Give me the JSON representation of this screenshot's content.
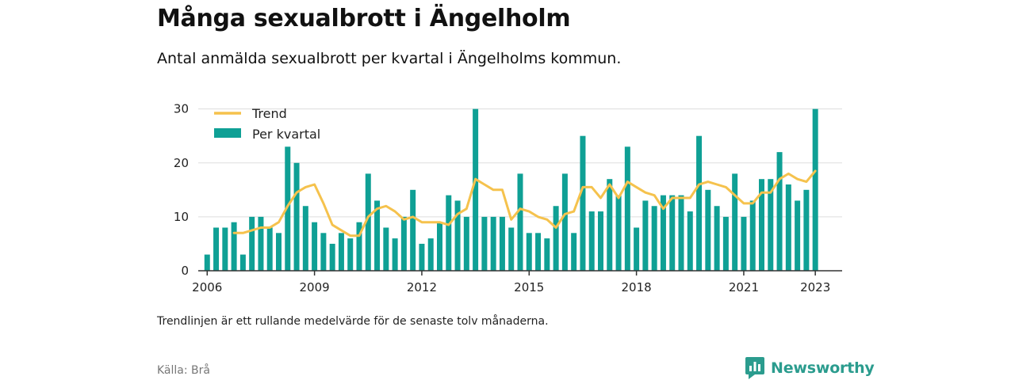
{
  "header": {
    "title": "Många sexualbrott i Ängelholm",
    "subtitle": "Antal anmälda sexualbrott per kvartal i Ängelholms kommun."
  },
  "footer": {
    "note": "Trendlinjen är ett rullande medelvärde för de senaste tolv månaderna.",
    "source": "Källa: Brå",
    "brand": "Newsworthy",
    "brand_icon": "bar-chart-speech-icon"
  },
  "colors": {
    "bars": "#0fa095",
    "trend": "#f5c24d",
    "grid": "#dddddd",
    "axis": "#333333",
    "brand": "#2b9c8e"
  },
  "chart_data": {
    "type": "bar",
    "x_unit": "quarter",
    "xlim": [
      "2005-10-01",
      "2023-10-01"
    ],
    "ylim": [
      0,
      32
    ],
    "yticks": [
      0,
      10,
      20,
      30
    ],
    "xticks": [
      {
        "label": "2006",
        "x": "2006-01-01"
      },
      {
        "label": "2009",
        "x": "2009-01-01"
      },
      {
        "label": "2012",
        "x": "2012-01-01"
      },
      {
        "label": "2015",
        "x": "2015-01-01"
      },
      {
        "label": "2018",
        "x": "2018-01-01"
      },
      {
        "label": "2021",
        "x": "2021-01-01"
      },
      {
        "label": "2023",
        "x": "2023-01-01"
      }
    ],
    "grid": true,
    "legend_position": "top-left",
    "series": [
      {
        "name": "Per kvartal",
        "type": "bar",
        "start": "2006-01-01",
        "values": [
          3,
          8,
          8,
          9,
          3,
          10,
          10,
          8,
          7,
          23,
          20,
          12,
          9,
          7,
          5,
          7,
          6,
          9,
          18,
          13,
          8,
          6,
          10,
          15,
          5,
          6,
          9,
          14,
          13,
          10,
          30,
          10,
          10,
          10,
          8,
          18,
          7,
          7,
          6,
          12,
          18,
          7,
          25,
          11,
          11,
          17,
          14,
          23,
          8,
          13,
          12,
          14,
          14,
          14,
          11,
          25,
          15,
          12,
          10,
          18,
          10,
          13,
          17,
          17,
          22,
          16,
          13,
          15,
          30
        ]
      },
      {
        "name": "Trend",
        "type": "line",
        "start": "2006-10-01",
        "values": [
          7,
          7,
          7.5,
          8,
          8,
          9,
          12,
          14.5,
          15.5,
          16,
          12.5,
          8.5,
          7.5,
          6.5,
          6.5,
          10,
          11.5,
          12,
          11,
          9.5,
          10,
          9,
          9,
          9,
          8.5,
          10.5,
          11.5,
          17,
          16,
          15,
          15,
          9.5,
          11.5,
          11,
          10,
          9.5,
          8,
          10.5,
          11,
          15.5,
          15.5,
          13.5,
          16,
          13.5,
          16.5,
          15.5,
          14.5,
          14,
          11.5,
          13.5,
          13.5,
          13.5,
          16,
          16.5,
          16,
          15.5,
          14,
          12.5,
          12.5,
          14.5,
          14.5,
          17,
          18,
          17,
          16.5,
          18.5
        ]
      }
    ]
  }
}
